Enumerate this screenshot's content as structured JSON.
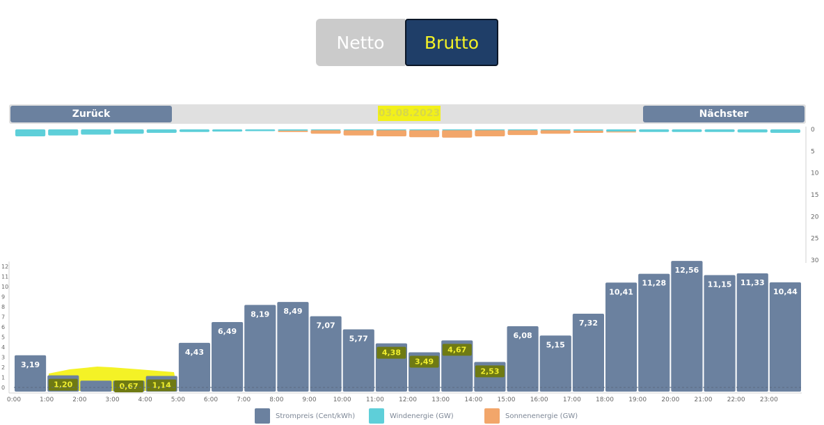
{
  "toggle": {
    "netto_label": "Netto",
    "brutto_label": "Brutto",
    "active": "Brutto"
  },
  "nav": {
    "prev_label": "Zurück",
    "next_label": "Nächster",
    "date": "03.08.2023"
  },
  "colors": {
    "price": "#6b819f",
    "wind": "#5ecfd9",
    "solar": "#f2a66a",
    "highlight": "#f4f226"
  },
  "legend": {
    "price": "Strompreis (Cent/kWh)",
    "wind": "Windenergie (GW)",
    "solar": "Sonnenenergie (GW)"
  },
  "chart_data": [
    {
      "type": "bar",
      "categories": [
        "0:00",
        "1:00",
        "2:00",
        "3:00",
        "4:00",
        "5:00",
        "6:00",
        "7:00",
        "8:00",
        "9:00",
        "10:00",
        "11:00",
        "12:00",
        "13:00",
        "14:00",
        "15:00",
        "16:00",
        "17:00",
        "18:00",
        "19:00",
        "20:00",
        "21:00",
        "22:00",
        "23:00"
      ],
      "series": [
        {
          "name": "Strompreis (Cent/kWh)",
          "values": [
            3.19,
            1.2,
            0.67,
            0.67,
            1.14,
            4.43,
            6.49,
            8.19,
            8.49,
            7.07,
            5.77,
            4.38,
            3.49,
            4.67,
            2.53,
            6.08,
            5.15,
            7.32,
            10.41,
            11.28,
            12.56,
            11.15,
            11.33,
            10.44
          ]
        }
      ],
      "labels": [
        "3,19",
        "1,20",
        "",
        "0,67",
        "1,14",
        "4,43",
        "6,49",
        "8,19",
        "8,49",
        "7,07",
        "5,77",
        "4,38",
        "3,49",
        "4,67",
        "2,53",
        "6,08",
        "5,15",
        "7,32",
        "10,41",
        "11,28",
        "12,56",
        "11,15",
        "11,33",
        "10,44"
      ],
      "highlighted_hours": [
        1,
        2,
        3,
        4,
        11,
        12,
        13,
        14
      ],
      "ylim": [
        0,
        12.5
      ],
      "yticks": [
        "0",
        "1",
        "2",
        "3",
        "4",
        "5",
        "6",
        "7",
        "8",
        "9",
        "10",
        "11",
        "12"
      ],
      "xticks": [
        "0:00",
        "1:00",
        "2:00",
        "3:00",
        "4:00",
        "5:00",
        "6:00",
        "7:00",
        "8:00",
        "9:00",
        "10:00",
        "11:00",
        "12:00",
        "13:00",
        "14:00",
        "15:00",
        "16:00",
        "17:00",
        "18:00",
        "19:00",
        "20:00",
        "21:00",
        "22:00",
        "23:00"
      ]
    },
    {
      "type": "bar",
      "series": [
        {
          "name": "Windenergie (GW)",
          "values": [
            1.6,
            1.4,
            1.2,
            1.0,
            0.8,
            0.6,
            0.5,
            0.4,
            0.3,
            0.2,
            0.2,
            0.2,
            0.2,
            0.2,
            0.2,
            0.2,
            0.2,
            0.3,
            0.5,
            0.6,
            0.6,
            0.6,
            0.7,
            0.8
          ]
        },
        {
          "name": "Sonnenenergie (GW)",
          "values": [
            0,
            0,
            0,
            0,
            0,
            0,
            0,
            0,
            0.3,
            0.8,
            1.2,
            1.4,
            1.6,
            1.7,
            1.4,
            1.1,
            0.8,
            0.5,
            0.2,
            0,
            0,
            0,
            0,
            0
          ]
        }
      ],
      "ylim": [
        0,
        30
      ],
      "yticks": [
        "0",
        "5",
        "10",
        "15",
        "20",
        "25",
        "30"
      ],
      "axis": "right, inverted"
    }
  ]
}
